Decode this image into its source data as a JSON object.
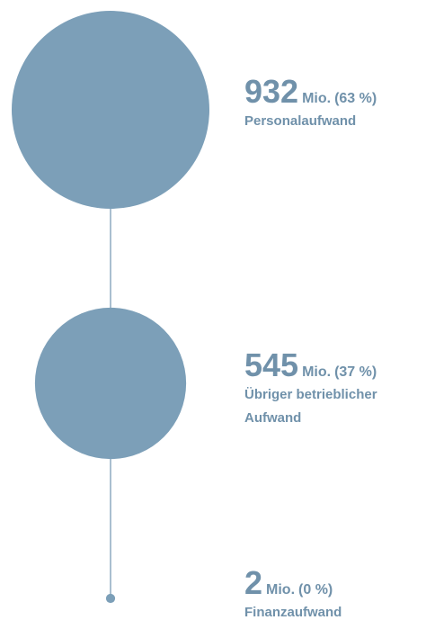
{
  "chart_data": {
    "type": "bubble",
    "categories": [
      "Personalaufwand",
      "Übriger betrieblicher Aufwand",
      "Finanzaufwand"
    ],
    "values": [
      932,
      545,
      2
    ],
    "unit": "Mio.",
    "shares": [
      63,
      37,
      0
    ],
    "share_labels": [
      "(63 %)",
      "(37 %)",
      "(0 %)"
    ],
    "color": "#7c9fb8"
  }
}
